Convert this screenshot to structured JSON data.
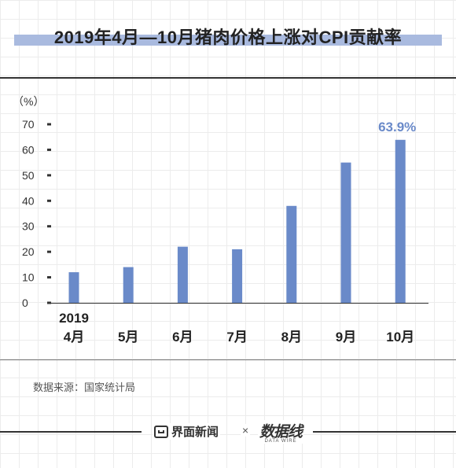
{
  "title": "2019年4月—10月猪肉价格上涨对CPI贡献率",
  "chart_data": {
    "type": "bar",
    "unit_label": "（%）",
    "categories": [
      "4月",
      "5月",
      "6月",
      "7月",
      "8月",
      "9月",
      "10月"
    ],
    "year_label": "2019",
    "values": [
      12,
      14,
      22,
      21,
      38,
      55,
      63.9
    ],
    "ylim": [
      0,
      70
    ],
    "yticks": [
      0,
      10,
      20,
      30,
      40,
      50,
      60,
      70
    ],
    "annotation": "63.9%",
    "bar_color": "#6a8ac9",
    "annotation_color": "#6a8ac9"
  },
  "source": "数据来源：国家统计局",
  "footer": {
    "brand1": "界面新闻",
    "times": "×",
    "brand2_cn": "数据线",
    "brand2_en": "DATA WIRE"
  }
}
